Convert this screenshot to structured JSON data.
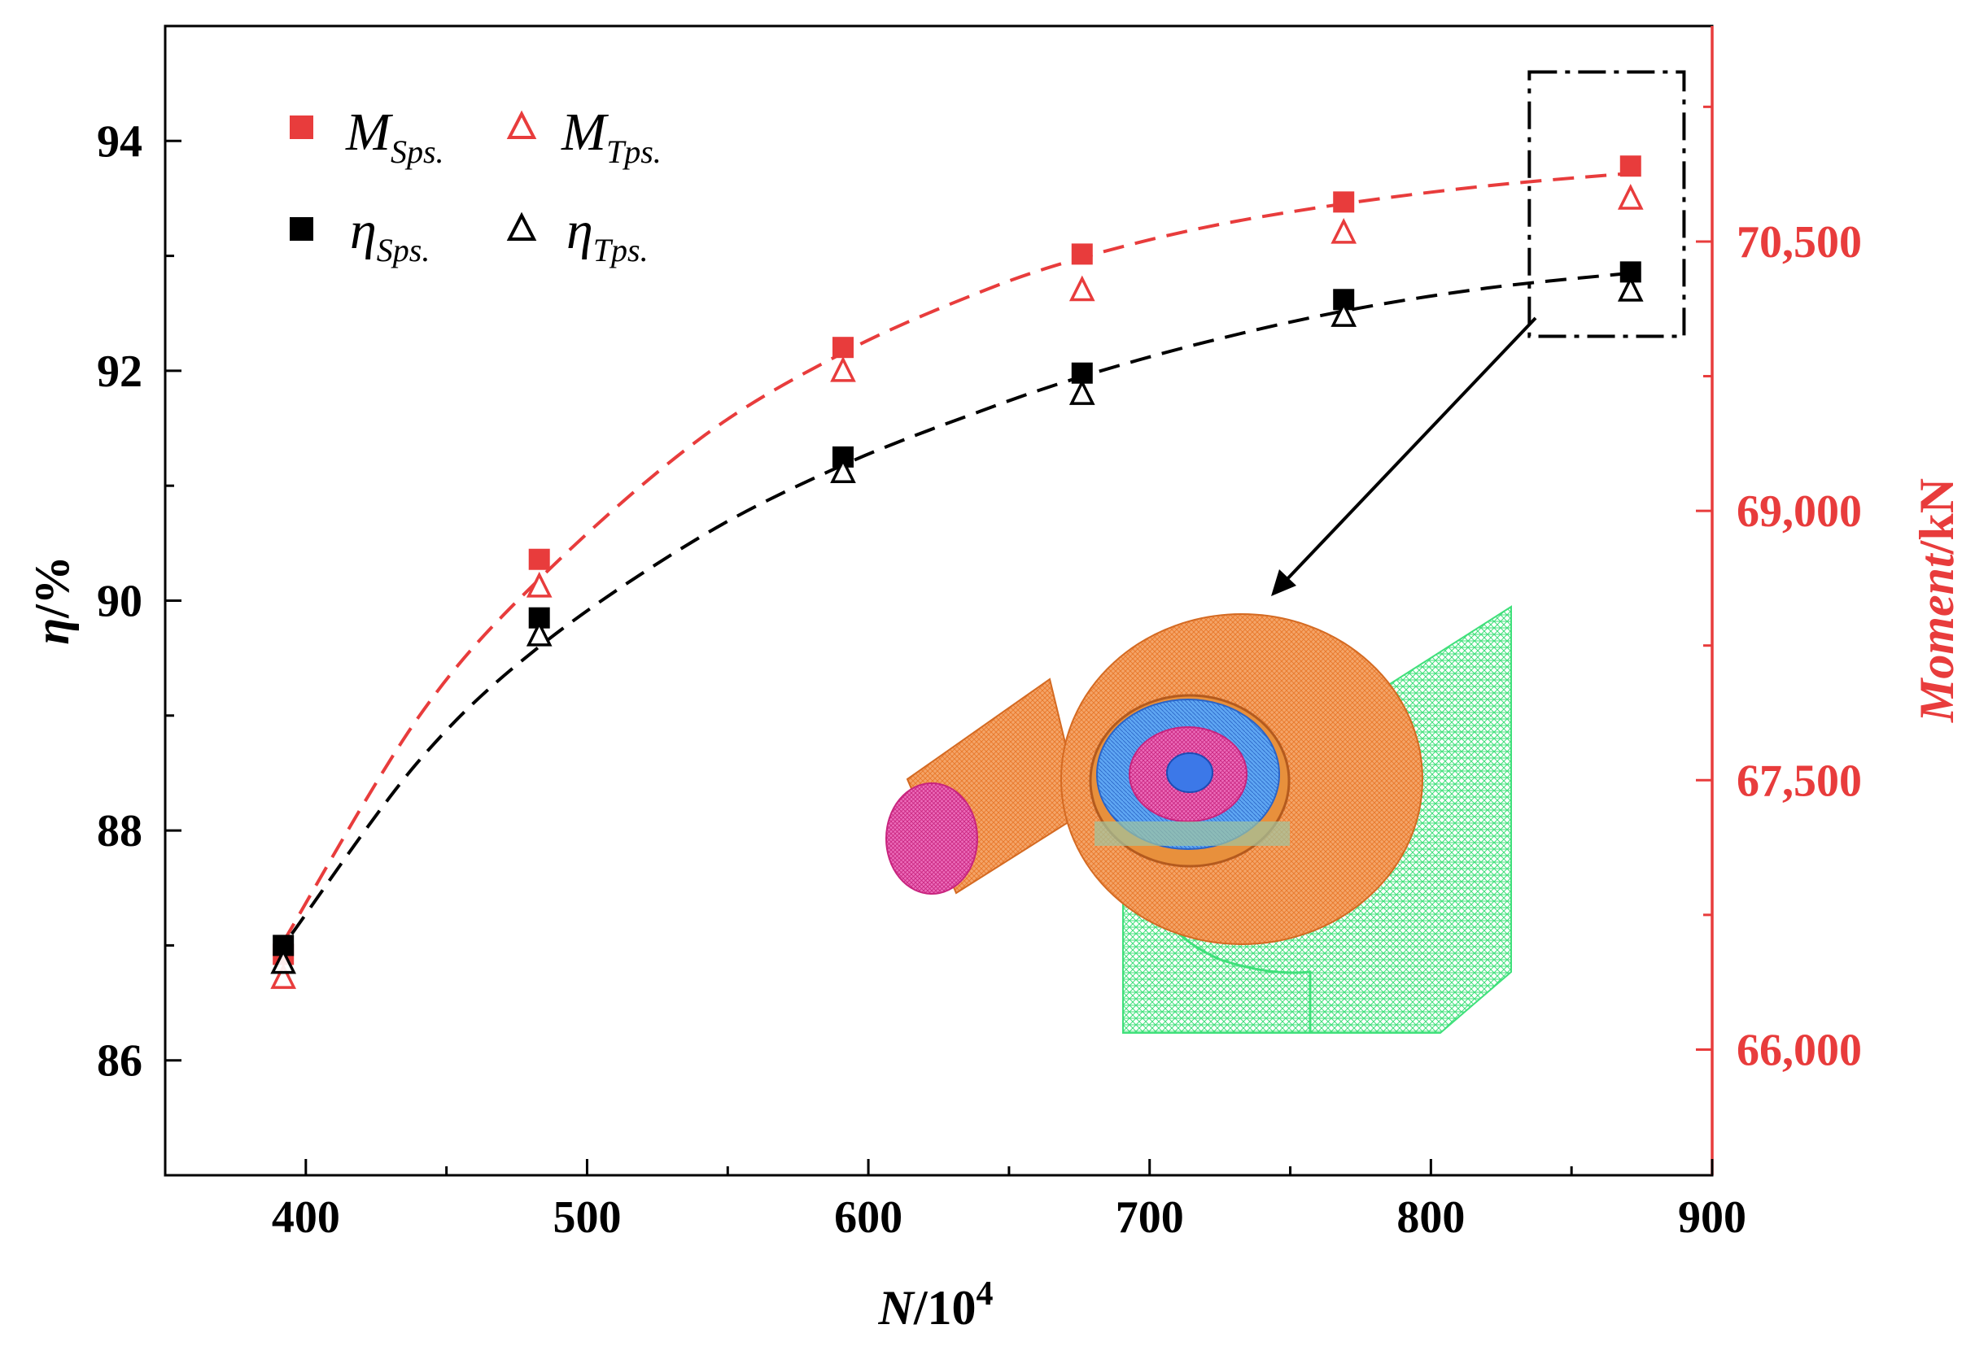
{
  "colors": {
    "red": "#e83c3c",
    "black": "#000000",
    "mesh_orange": "#f08a3c",
    "mesh_green": "#3fe07a",
    "mesh_magenta": "#e03ca0",
    "mesh_blue": "#3c8ce8"
  },
  "chart_data": {
    "type": "scatter",
    "xlabel": {
      "italic": "N",
      "rest": "/10",
      "sup": "4"
    },
    "ylabel": {
      "italic": "η",
      "rest": "/%"
    },
    "y2label": {
      "italic": "Moment",
      "rest": "/kN"
    },
    "xlim": [
      350,
      900
    ],
    "ylim": [
      85,
      95
    ],
    "y2lim": [
      65300,
      71700
    ],
    "x_ticks": [
      400,
      500,
      600,
      700,
      800,
      900
    ],
    "x_tick_labels": [
      "400",
      "500",
      "600",
      "700",
      "800",
      "900"
    ],
    "y_ticks": [
      86,
      88,
      90,
      92,
      94
    ],
    "y_tick_labels": [
      "86",
      "88",
      "90",
      "92",
      "94"
    ],
    "y2_ticks": [
      66000,
      67500,
      69000,
      70500
    ],
    "y2_tick_labels": [
      "66,000",
      "67,500",
      "69,000",
      "70,500"
    ],
    "legend": [
      {
        "main": "M",
        "sub": "Sps.",
        "marker": "square",
        "color": "#e83c3c"
      },
      {
        "main": "M",
        "sub": "Tps.",
        "marker": "triangle",
        "color": "#e83c3c"
      },
      {
        "main": "η",
        "sub": "Sps.",
        "marker": "square",
        "color": "#000000"
      },
      {
        "main": "η",
        "sub": "Tps.",
        "marker": "triangle",
        "color": "#000000"
      }
    ],
    "series": [
      {
        "name": "M_Sps.",
        "axis": "y2",
        "marker": "square",
        "color": "#e83c3c",
        "x": [
          392,
          483,
          591,
          676,
          769,
          871
        ],
        "y": [
          66530,
          68730,
          69910,
          70430,
          70720,
          70920
        ]
      },
      {
        "name": "M_Tps.",
        "axis": "y2",
        "marker": "triangle",
        "color": "#e83c3c",
        "x": [
          392,
          483,
          591,
          676,
          769,
          871
        ],
        "y": [
          66400,
          68580,
          69780,
          70230,
          70550,
          70740
        ]
      },
      {
        "name": "η_Sps.",
        "axis": "y",
        "marker": "square",
        "color": "#000000",
        "x": [
          392,
          483,
          591,
          676,
          769,
          871
        ],
        "y": [
          87.0,
          89.85,
          91.25,
          91.98,
          92.62,
          92.86
        ]
      },
      {
        "name": "η_Tps.",
        "axis": "y",
        "marker": "triangle",
        "color": "#000000",
        "x": [
          392,
          483,
          591,
          676,
          769,
          871
        ],
        "y": [
          86.85,
          89.7,
          91.12,
          91.8,
          92.48,
          92.7
        ]
      }
    ],
    "fit_curves": [
      {
        "name": "M fit",
        "axis": "y2",
        "color": "#e83c3c",
        "style": "dashed",
        "x": [
          392,
          440,
          483,
          540,
          591,
          640,
          676,
          720,
          769,
          820,
          871
        ],
        "y": [
          66600,
          67850,
          68620,
          69400,
          69880,
          70220,
          70410,
          70580,
          70710,
          70810,
          70880
        ]
      },
      {
        "name": "η fit",
        "axis": "y",
        "color": "#000000",
        "style": "dashed",
        "x": [
          395,
          440,
          483,
          540,
          591,
          640,
          676,
          720,
          769,
          820,
          871
        ],
        "y": [
          87.1,
          88.6,
          89.6,
          90.55,
          91.18,
          91.65,
          91.95,
          92.25,
          92.52,
          92.72,
          92.85
        ]
      }
    ],
    "zoom_box": {
      "x_range": [
        835,
        890
      ],
      "y_range": [
        92.3,
        94.6
      ]
    },
    "annotation": "inset 3D mesh of pump-turbine (volute, runner, draft tube)"
  }
}
